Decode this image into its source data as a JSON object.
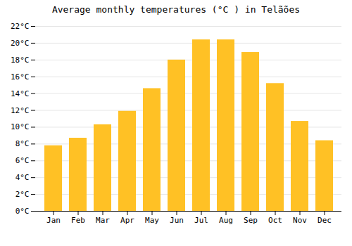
{
  "chart_data": {
    "type": "bar",
    "title": "Average monthly temperatures (°C ) in Telãões",
    "categories": [
      "Jan",
      "Feb",
      "Mar",
      "Apr",
      "May",
      "Jun",
      "Jul",
      "Aug",
      "Sep",
      "Oct",
      "Nov",
      "Dec"
    ],
    "values": [
      7.8,
      8.7,
      10.3,
      11.9,
      14.6,
      18.0,
      20.4,
      20.4,
      18.9,
      15.2,
      10.7,
      8.4
    ],
    "color": "#FFC125",
    "ylim": [
      0,
      22
    ],
    "yticks": [
      {
        "value": 0,
        "label": "0°C"
      },
      {
        "value": 2,
        "label": "2°C"
      },
      {
        "value": 4,
        "label": "4°C"
      },
      {
        "value": 6,
        "label": "6°C"
      },
      {
        "value": 8,
        "label": "8°C"
      },
      {
        "value": 10,
        "label": "10°C"
      },
      {
        "value": 12,
        "label": "12°C"
      },
      {
        "value": 14,
        "label": "14°C"
      },
      {
        "value": 16,
        "label": "16°C"
      },
      {
        "value": 18,
        "label": "18°C"
      },
      {
        "value": 20,
        "label": "20°C"
      },
      {
        "value": 22,
        "label": "22°C"
      }
    ],
    "grid": true
  }
}
